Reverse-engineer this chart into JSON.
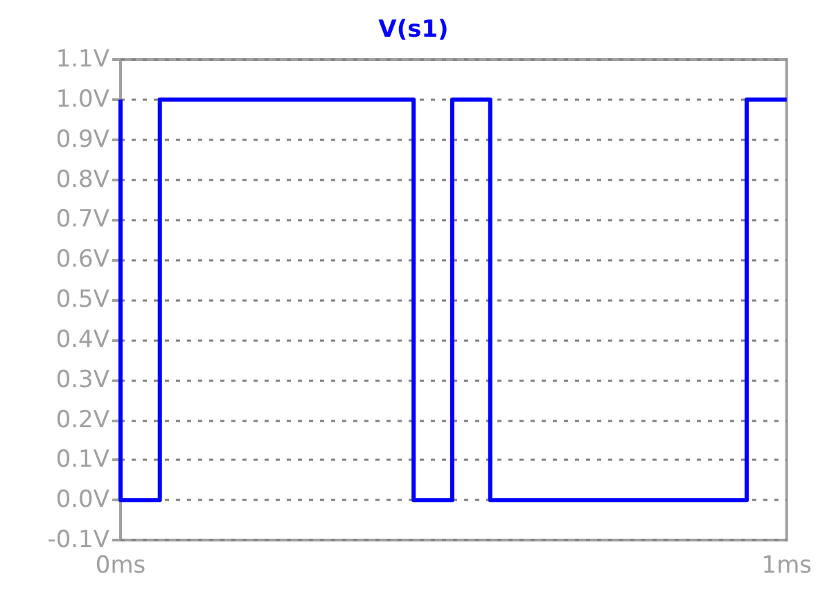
{
  "chart_data": {
    "type": "step",
    "title": "V(s1)",
    "x": [
      0,
      0,
      0.059,
      0.44,
      0.498,
      0.555,
      0.94,
      1
    ],
    "series": [
      {
        "color": "#0000ff",
        "values": [
          1,
          0,
          1,
          0,
          1,
          0,
          1,
          1
        ]
      }
    ],
    "xlim": [
      0,
      1
    ],
    "xticks": [
      {
        "value": 0,
        "label": "0ms"
      },
      {
        "value": 1,
        "label": "1ms"
      }
    ],
    "ylim": [
      -0.1,
      1.1
    ],
    "yticks": [
      {
        "value": -0.1,
        "label": "-0.1V"
      },
      {
        "value": 0,
        "label": "0.0V"
      },
      {
        "value": 0.1,
        "label": "0.1V"
      },
      {
        "value": 0.2,
        "label": "0.2V"
      },
      {
        "value": 0.3,
        "label": "0.3V"
      },
      {
        "value": 0.4,
        "label": "0.4V"
      },
      {
        "value": 0.5,
        "label": "0.5V"
      },
      {
        "value": 0.6,
        "label": "0.6V"
      },
      {
        "value": 0.7,
        "label": "0.7V"
      },
      {
        "value": 0.8,
        "label": "0.8V"
      },
      {
        "value": 0.9,
        "label": "0.9V"
      },
      {
        "value": 1.0,
        "label": "1.0V"
      },
      {
        "value": 1.1,
        "label": "1.1V"
      }
    ],
    "grid": "y",
    "marker": "none",
    "line_style": "solid"
  }
}
